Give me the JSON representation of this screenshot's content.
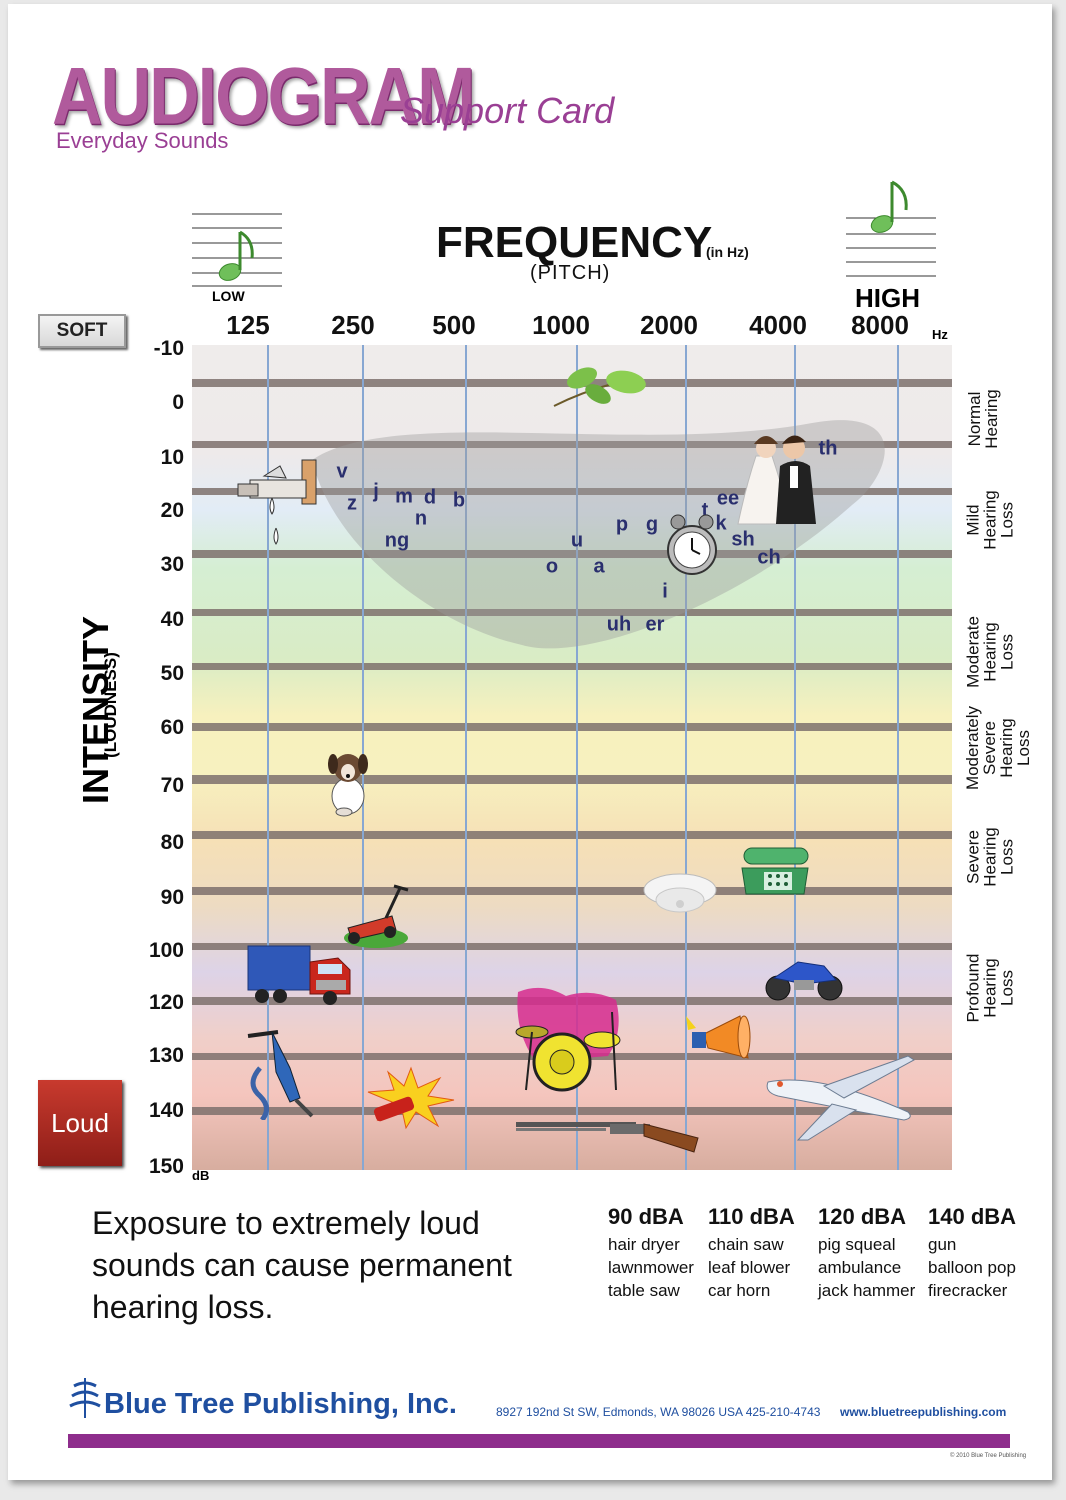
{
  "header": {
    "title": "AUDIOGRAM",
    "subtitle": "Support Card",
    "tagline": "Everyday Sounds"
  },
  "axes": {
    "frequency_title": "FREQUENCY",
    "frequency_unit": "(in Hz)",
    "frequency_subtitle": "(PITCH)",
    "low_label": "LOW",
    "high_label": "HIGH",
    "hz_unit": "Hz",
    "frequency_ticks": [
      "125",
      "250",
      "500",
      "1000",
      "2000",
      "4000",
      "8000"
    ],
    "intensity_title": "INTENSITY",
    "intensity_subtitle": "(LOUDNESS)",
    "db_ticks": [
      "-10",
      "0",
      "10",
      "20",
      "30",
      "40",
      "50",
      "60",
      "70",
      "80",
      "90",
      "100",
      "120",
      "130",
      "140",
      "150"
    ],
    "db_unit": "dB",
    "soft_label": "SOFT",
    "loud_label": "Loud"
  },
  "hearing_bands": [
    {
      "name": "Normal Hearing",
      "lines": [
        "Normal",
        "Hearing"
      ],
      "color": "#ece7e6"
    },
    {
      "name": "Mild Hearing Loss",
      "lines": [
        "Mild",
        "Hearing",
        "Loss"
      ],
      "color": "#d3e8d2"
    },
    {
      "name": "Moderate Hearing Loss",
      "lines": [
        "Moderate",
        "Hearing",
        "Loss"
      ],
      "color": "#f6eeb8"
    },
    {
      "name": "Moderately Severe Hearing Loss",
      "lines": [
        "Moderately",
        "Severe",
        "Hearing",
        "Loss"
      ],
      "color": "#f3dcb3"
    },
    {
      "name": "Severe Hearing Loss",
      "lines": [
        "Severe",
        "Hearing",
        "Loss"
      ],
      "color": "#ddd3e6"
    },
    {
      "name": "Profound Hearing Loss",
      "lines": [
        "Profound",
        "Hearing",
        "Loss"
      ],
      "color": "#f4c8c2"
    }
  ],
  "speech_sounds": [
    "v",
    "z",
    "j",
    "m",
    "d",
    "b",
    "n",
    "ng",
    "u",
    "o",
    "a",
    "p",
    "g",
    "t",
    "ee",
    "k",
    "sh",
    "ch",
    "th",
    "i",
    "uh",
    "er"
  ],
  "sound_icons": [
    "leaves-icon",
    "dripping-faucet-icon",
    "bride-groom-icon",
    "alarm-clock-icon",
    "dog-icon",
    "telephone-icon",
    "smoke-alarm-icon",
    "lawnmower-icon",
    "truck-icon",
    "motorcycle-icon",
    "drum-kit-icon",
    "jackhammer-icon",
    "megaphone-icon",
    "firecracker-icon",
    "airplane-icon",
    "shotgun-icon"
  ],
  "footer": {
    "exposure_text": "Exposure to extremely loud sounds can cause permanent hearing loss.",
    "noise_levels": [
      {
        "level": "90 dBA",
        "items": [
          "hair dryer",
          "lawnmower",
          "table saw"
        ]
      },
      {
        "level": "110 dBA",
        "items": [
          "chain saw",
          "leaf blower",
          "car horn"
        ]
      },
      {
        "level": "120 dBA",
        "items": [
          "pig squeal",
          "ambulance",
          "jack hammer"
        ]
      },
      {
        "level": "140 dBA",
        "items": [
          "gun",
          "balloon pop",
          "firecracker"
        ]
      }
    ],
    "publisher": "Blue Tree Publishing, Inc.",
    "address": "8927 192nd St SW, Edmonds, WA 98026 USA 425-210-4743",
    "website": "www.bluetreepublishing.com",
    "copyright": "© 2010 Blue Tree Publishing"
  },
  "colors": {
    "brand_purple": "#b05a9c",
    "publisher_blue": "#1f4fa0",
    "phoneme_navy": "#2a2f6e",
    "band_stripe": "#7b6e6a",
    "grid_line": "#87a7d2"
  }
}
